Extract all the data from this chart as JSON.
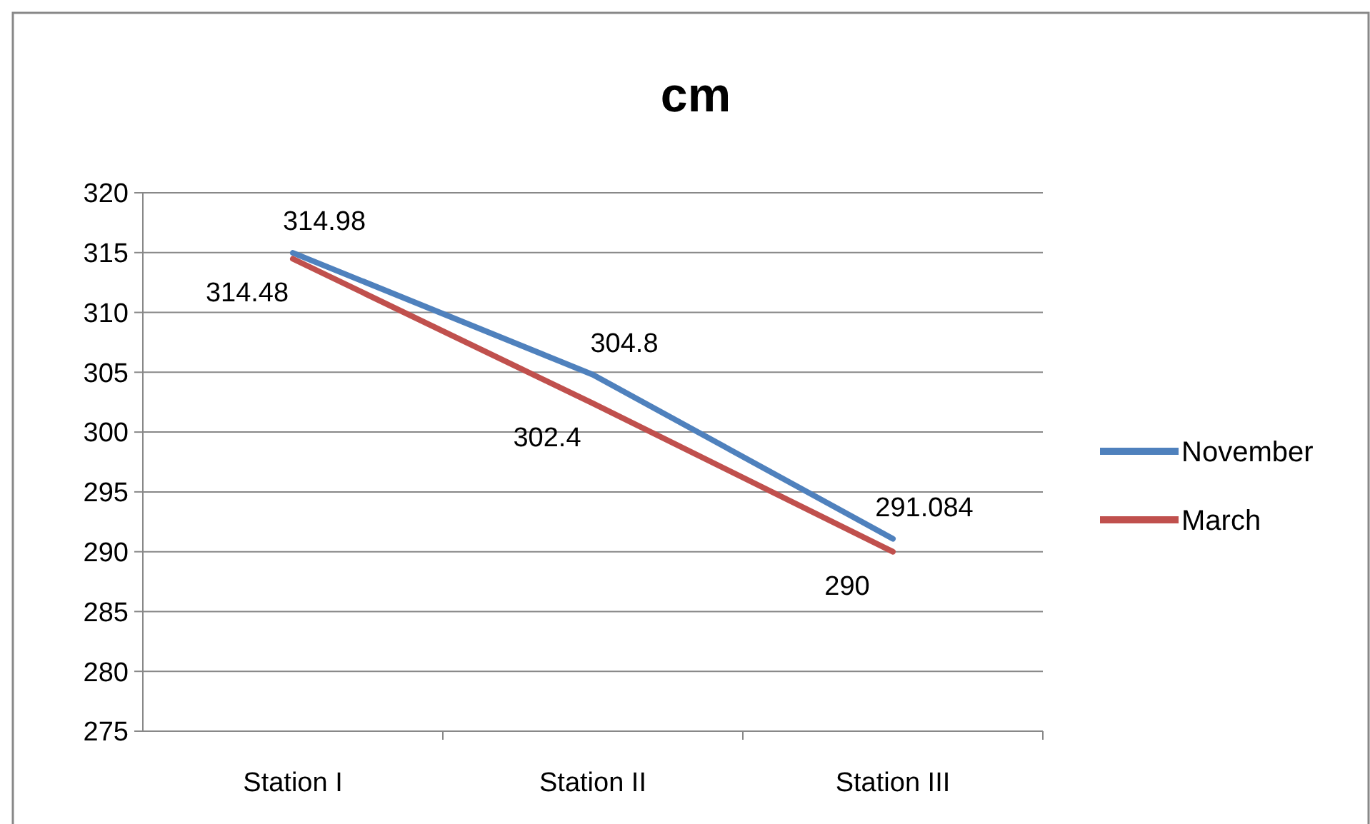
{
  "chart_data": {
    "type": "line",
    "title": "cm",
    "categories": [
      "Station I",
      "Station II",
      "Station III"
    ],
    "series": [
      {
        "name": "November",
        "color": "#4f81bd",
        "values": [
          314.98,
          304.8,
          291.084
        ]
      },
      {
        "name": "March",
        "color": "#c0504d",
        "values": [
          314.48,
          302.4,
          290
        ]
      }
    ],
    "ylim": [
      275,
      320
    ],
    "yticks": [
      275,
      280,
      285,
      290,
      295,
      300,
      305,
      310,
      315,
      320
    ],
    "grid": "y",
    "legend": "right",
    "marker": "none",
    "line_style": "solid",
    "data_labels": true
  }
}
